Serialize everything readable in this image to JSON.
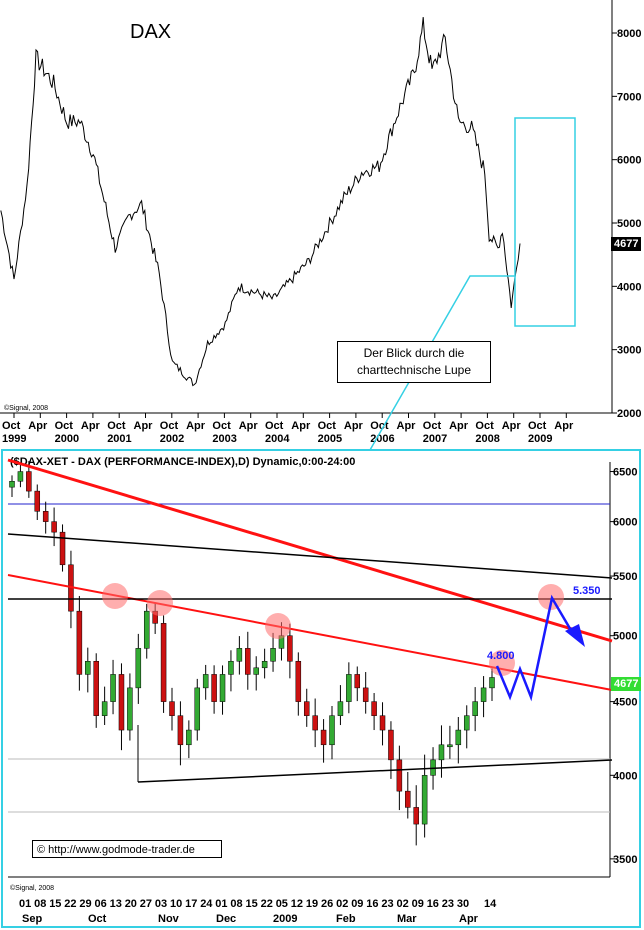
{
  "colors": {
    "frame": "#35d0e4",
    "trend_red": "#ff1111",
    "support_black": "#000000",
    "forecast_blue": "#1a1aff",
    "last_price_tag_dark": "#000000",
    "last_price_tag_green": "#33dd33",
    "candle_up": "#33aa33",
    "candle_down": "#cc1111",
    "marker_glow": "#ff6b6b"
  },
  "chart_data": [
    {
      "type": "line",
      "title": "DAX",
      "x_tick_labels": [
        {
          "month": "Oct",
          "year": "1999"
        },
        {
          "month": "Apr",
          "year": ""
        },
        {
          "month": "Oct",
          "year": "2000"
        },
        {
          "month": "Apr",
          "year": ""
        },
        {
          "month": "Oct",
          "year": "2001"
        },
        {
          "month": "Apr",
          "year": ""
        },
        {
          "month": "Oct",
          "year": "2002"
        },
        {
          "month": "Apr",
          "year": ""
        },
        {
          "month": "Oct",
          "year": "2003"
        },
        {
          "month": "Apr",
          "year": ""
        },
        {
          "month": "Oct",
          "year": "2004"
        },
        {
          "month": "Apr",
          "year": ""
        },
        {
          "month": "Oct",
          "year": "2005"
        },
        {
          "month": "Apr",
          "year": ""
        },
        {
          "month": "Oct",
          "year": "2006"
        },
        {
          "month": "Apr",
          "year": ""
        },
        {
          "month": "Oct",
          "year": "2007"
        },
        {
          "month": "Apr",
          "year": ""
        },
        {
          "month": "Oct",
          "year": "2008"
        },
        {
          "month": "Apr",
          "year": ""
        },
        {
          "month": "Oct",
          "year": "2009"
        },
        {
          "month": "Apr",
          "year": ""
        }
      ],
      "y_ticks": [
        2000,
        3000,
        4000,
        5000,
        6000,
        7000,
        8000
      ],
      "ylim": [
        2000,
        8500
      ],
      "x": [
        "1999-07",
        "1999-10",
        "2000-01",
        "2000-03",
        "2000-07",
        "2000-10",
        "2001-01",
        "2001-04",
        "2001-09",
        "2001-12",
        "2002-03",
        "2002-07",
        "2002-10",
        "2003-03",
        "2003-06",
        "2003-10",
        "2004-01",
        "2004-05",
        "2004-09",
        "2005-01",
        "2005-05",
        "2005-09",
        "2006-01",
        "2006-05",
        "2006-09",
        "2007-01",
        "2007-05",
        "2007-07",
        "2007-09",
        "2007-12",
        "2008-03",
        "2008-06",
        "2008-09",
        "2008-10",
        "2008-12",
        "2009-01",
        "2009-03",
        "2009-05"
      ],
      "values": [
        5200,
        4100,
        5600,
        7600,
        7200,
        6600,
        6600,
        6100,
        4600,
        5100,
        5300,
        4200,
        2800,
        2450,
        3100,
        3400,
        4000,
        3900,
        3800,
        4100,
        4400,
        4900,
        5400,
        5800,
        5900,
        6700,
        7400,
        8100,
        7400,
        7900,
        6600,
        6500,
        5800,
        4800,
        4600,
        4900,
        3700,
        4677
      ],
      "last_value_label": "4677",
      "copyright": "©Signal, 2008",
      "highlight_note": "Der Blick durch die charttechnische Lupe"
    },
    {
      "type": "candlestick",
      "title": "($DAX-XET - DAX (PERFORMANCE-INDEX),D) Dynamic,0:00-24:00",
      "x_tick_labels": [
        "01",
        "08",
        "15",
        "22",
        "29",
        "06",
        "13",
        "20",
        "27",
        "03",
        "10",
        "17",
        "24",
        "01",
        "08",
        "15",
        "22",
        "05",
        "12",
        "19",
        "26",
        "02",
        "09",
        "16",
        "23",
        "02",
        "09",
        "16",
        "23",
        "30",
        "14"
      ],
      "x_month_labels": [
        "Sep",
        "Oct",
        "Nov",
        "Dec",
        "2009",
        "Feb",
        "Mar",
        "Apr"
      ],
      "y_ticks": [
        3500,
        4000,
        4500,
        5000,
        5500,
        6000,
        6500
      ],
      "ylim": [
        3400,
        6600
      ],
      "closes": [
        6400,
        6500,
        6300,
        6100,
        6000,
        5900,
        5600,
        5200,
        4700,
        4800,
        4400,
        4500,
        4700,
        4300,
        4600,
        4900,
        5200,
        5100,
        4500,
        4400,
        4200,
        4300,
        4600,
        4700,
        4500,
        4700,
        4800,
        4900,
        4700,
        4750,
        4800,
        4900,
        5000,
        4800,
        4500,
        4400,
        4300,
        4200,
        4400,
        4500,
        4700,
        4600,
        4500,
        4400,
        4300,
        4100,
        3900,
        3800,
        3700,
        4000,
        4100,
        4200,
        4200,
        4300,
        4400,
        4500,
        4600,
        4677
      ],
      "annotations": [
        "4.800",
        "5.350"
      ],
      "last_value_label": "4677",
      "url_label": "http://www.godmode-trader.de",
      "copyright": "©Signal, 2008"
    }
  ]
}
